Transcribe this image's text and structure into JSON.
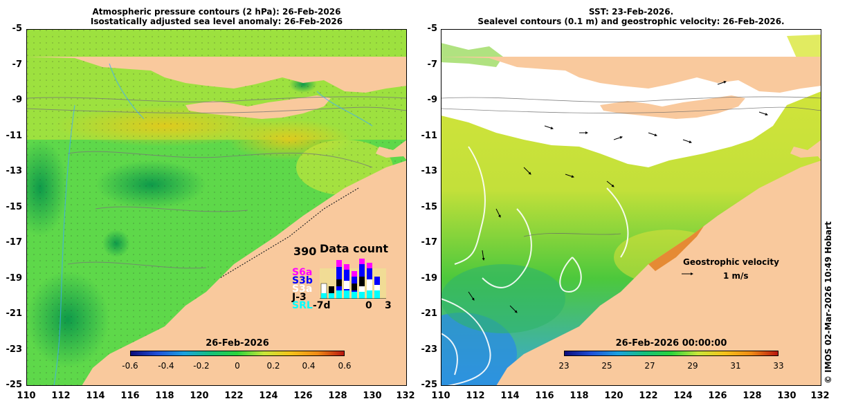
{
  "left_panel": {
    "title_line1": "Atmospheric pressure contours (2 hPa): 26-Feb-2026",
    "title_line2": "Isostatically adjusted sea level anomaly: 26-Feb-2026",
    "colorbar": {
      "title": "26-Feb-2026",
      "ticks": [
        "-0.6",
        "-0.4",
        "-0.2",
        "0",
        "0.2",
        "0.4",
        "0.6"
      ]
    },
    "data_count": {
      "title": "Data count",
      "max_label": "390",
      "satellites": [
        "S6a",
        "S3b",
        "S3a",
        "J-3",
        "SRL"
      ],
      "satellite_colors": [
        "#ff00ff",
        "#0000ff",
        "#ffffff",
        "#000000",
        "#00ffff"
      ],
      "x_labels": [
        "-7d",
        "0",
        "3"
      ]
    }
  },
  "right_panel": {
    "title_line1": "SST: 23-Feb-2026.",
    "title_line2": "Sealevel contours (0.1 m) and geostrophic velocity: 26-Feb-2026.",
    "colorbar": {
      "title": "26-Feb-2026 00:00:00",
      "ticks": [
        "23",
        "25",
        "27",
        "29",
        "31",
        "33"
      ]
    },
    "velocity_legend": {
      "label": "Geostrophic velocity",
      "scale": "1 m/s"
    }
  },
  "axes": {
    "lat_ticks": [
      "-5",
      "-7",
      "-9",
      "-11",
      "-13",
      "-15",
      "-17",
      "-19",
      "-21",
      "-23",
      "-25"
    ],
    "lon_ticks": [
      "110",
      "112",
      "114",
      "116",
      "118",
      "120",
      "122",
      "124",
      "126",
      "128",
      "130",
      "132"
    ]
  },
  "copyright": "© IMOS 02-Mar-2026 10:49 Hobart",
  "colors": {
    "land": "#f9c99d",
    "cloud_mask": "#ffffff"
  }
}
